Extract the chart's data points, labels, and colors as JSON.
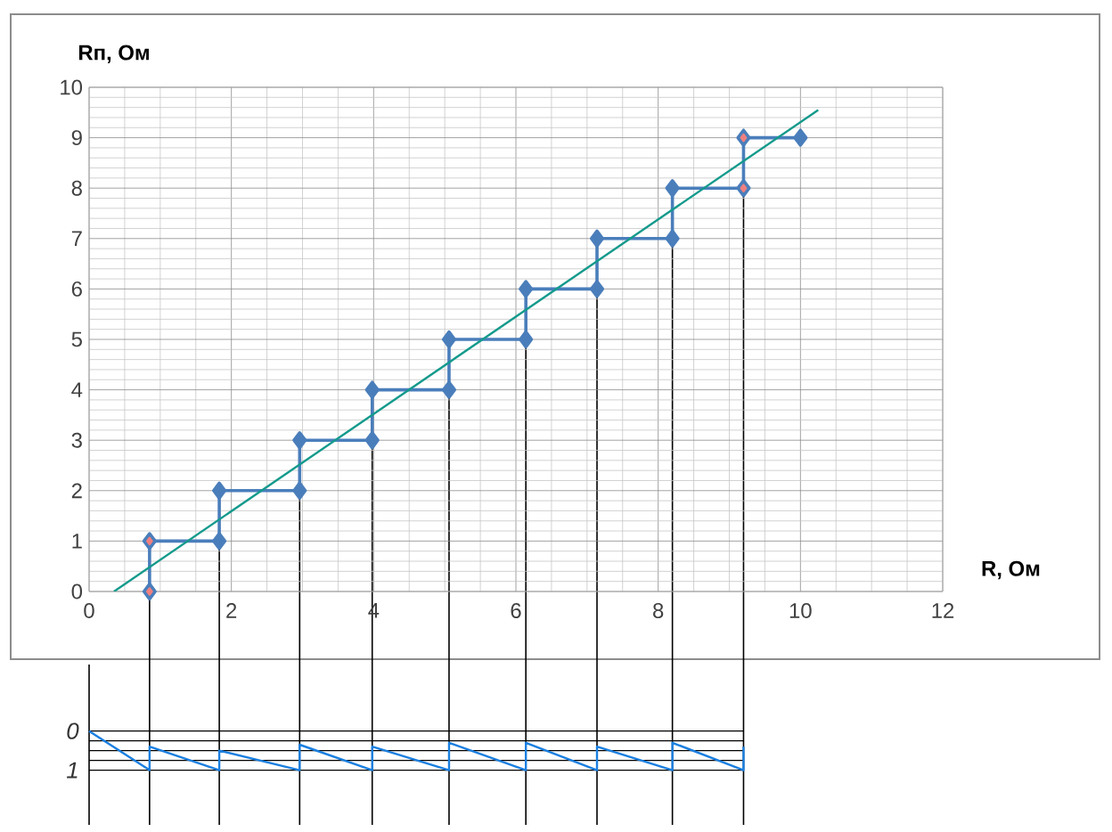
{
  "chart_data": [
    {
      "type": "line",
      "xlabel": "R, Ом",
      "ylabel": "Rп, Ом",
      "xlim": [
        0,
        12
      ],
      "ylim": [
        0,
        10
      ],
      "xticks": [
        0,
        2,
        4,
        6,
        8,
        10,
        12
      ],
      "yticks": [
        0,
        1,
        2,
        3,
        4,
        5,
        6,
        7,
        8,
        9,
        10
      ],
      "grid": true,
      "series": [
        {
          "color": "#4a7ebb",
          "marker": "diamond",
          "x": [
            0.85,
            0.85,
            1.83,
            1.83,
            2.96,
            2.96,
            3.98,
            3.98,
            5.06,
            5.06,
            6.14,
            6.14,
            7.14,
            7.14,
            8.2,
            8.2,
            9.2,
            9.2,
            10
          ],
          "values": [
            0,
            1,
            1,
            2,
            2,
            3,
            3,
            4,
            4,
            5,
            5,
            6,
            6,
            7,
            7,
            8,
            8,
            9,
            9
          ]
        },
        {
          "type": "scatter",
          "color": "#f08080",
          "marker": "diamond",
          "x": [
            0.85,
            0.85,
            9.2,
            9.2
          ],
          "values": [
            0,
            1,
            8,
            9
          ]
        },
        {
          "color": "#149a8c",
          "marker": "none",
          "x": [
            0.35,
            10.25
          ],
          "values": [
            0,
            9.55
          ]
        }
      ]
    },
    {
      "type": "line",
      "xlim": [
        0,
        12
      ],
      "xticks": [
        0,
        2,
        4,
        6,
        8,
        10,
        12
      ],
      "ylim": [
        2.4,
        -1.7
      ],
      "yticks": [
        0,
        {
          "value": 0.25,
          "label": null
        },
        {
          "value": 0.5,
          "label": null
        },
        {
          "value": 0.75,
          "label": null
        },
        1
      ],
      "grid": "y",
      "tick_labels": "y",
      "series": [
        {
          "color": "#1a7fe0",
          "marker": "none",
          "x": [
            0,
            0.85,
            0.85,
            1.83,
            1.83,
            2.96,
            2.96,
            3.98,
            3.98,
            5.06,
            5.06,
            6.14,
            6.14,
            7.14,
            7.14,
            8.2,
            8.2,
            9.2,
            9.2
          ],
          "values": [
            0,
            1,
            0.4,
            1,
            0.5,
            1,
            0.35,
            1,
            0.4,
            1,
            0.3,
            1,
            0.3,
            1,
            0.4,
            1,
            0.3,
            1,
            0.4
          ]
        }
      ],
      "ref_lines": [
        {
          "axis": "x",
          "value": 0.85,
          "color": "#000000"
        },
        {
          "axis": "x",
          "value": 1.83,
          "color": "#000000"
        },
        {
          "axis": "x",
          "value": 2.96,
          "color": "#000000"
        },
        {
          "axis": "x",
          "value": 3.98,
          "color": "#000000"
        },
        {
          "axis": "x",
          "value": 5.06,
          "color": "#000000"
        },
        {
          "axis": "x",
          "value": 6.14,
          "color": "#000000"
        },
        {
          "axis": "x",
          "value": 7.14,
          "color": "#000000"
        },
        {
          "axis": "x",
          "value": 8.2,
          "color": "#000000"
        },
        {
          "axis": "x",
          "value": 9.2,
          "color": "#000000"
        }
      ]
    }
  ]
}
